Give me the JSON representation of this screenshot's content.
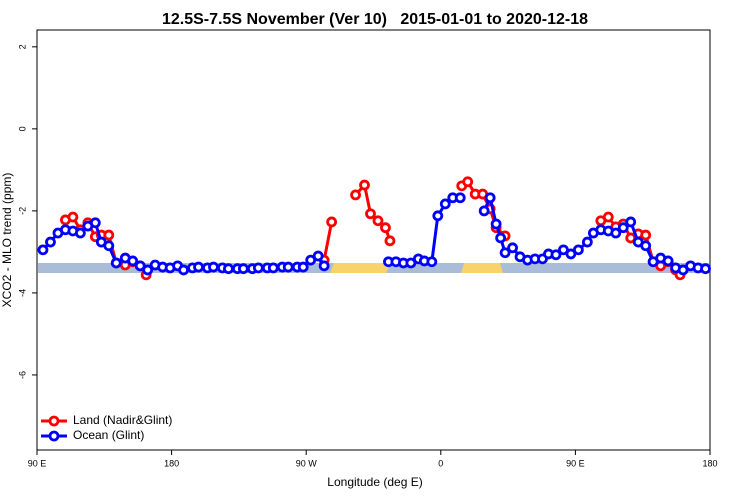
{
  "chart_data": {
    "type": "line",
    "title": "12.5S-7.5S November (Ver 10)   2015-01-01 to 2020-12-18",
    "x_label": "Longitude (deg E)",
    "y_label": "XCO2 - MLO trend (ppm)",
    "xlim": [
      90,
      540
    ],
    "ylim": [
      -7.83,
      2.41
    ],
    "xticks": [
      {
        "value": 90,
        "label": "90 E"
      },
      {
        "value": 180,
        "label": "180"
      },
      {
        "value": 270,
        "label": "90 W"
      },
      {
        "value": 360,
        "label": "0"
      },
      {
        "value": 450,
        "label": "90 E"
      },
      {
        "value": 540,
        "label": "180"
      }
    ],
    "yticks": [
      2,
      0,
      -2,
      -4,
      -6
    ],
    "legend": "bottomleft",
    "series": [
      {
        "name": "Land (Nadir&Glint)",
        "color": "#ff0000",
        "x": [
          109,
          114,
          119,
          124,
          129,
          133,
          138,
          143,
          149,
          154,
          159,
          163,
          null,
          282,
          287,
          null,
          303,
          309,
          313,
          318,
          323,
          326,
          null,
          374,
          378,
          383,
          388,
          393,
          397,
          403,
          null,
          467,
          472,
          477,
          482,
          487,
          492,
          497,
          502,
          507,
          512,
          517,
          520
        ],
        "values": [
          -2.22,
          -2.15,
          -2.46,
          -2.29,
          -2.63,
          -2.59,
          -2.59,
          -3.27,
          -3.32,
          -3.24,
          -3.34,
          -3.56,
          null,
          -3.2,
          -2.27,
          null,
          -1.61,
          -1.37,
          -2.07,
          -2.24,
          -2.41,
          -2.73,
          null,
          -1.39,
          -1.29,
          -1.59,
          -1.59,
          -1.95,
          -2.41,
          -2.61,
          null,
          -2.24,
          -2.15,
          -2.39,
          -2.32,
          -2.66,
          -2.56,
          -2.59,
          -3.24,
          -3.34,
          -3.24,
          -3.44,
          -3.56
        ]
      },
      {
        "name": "Ocean (Glint)",
        "color": "#0000ff",
        "x": [
          94,
          99,
          104,
          109,
          114,
          119,
          124,
          129,
          133,
          138,
          143,
          149,
          154,
          159,
          164,
          169,
          174,
          179,
          184,
          188,
          194,
          198,
          204,
          208,
          214,
          218,
          224,
          228,
          234,
          238,
          244,
          248,
          254,
          258,
          264,
          268,
          273,
          278,
          282,
          null,
          325,
          330,
          335,
          340,
          345,
          349,
          354,
          358,
          363,
          368,
          373,
          null,
          389,
          393,
          397,
          400,
          403,
          408,
          413,
          418,
          423,
          428,
          432,
          437,
          442,
          447,
          452,
          458,
          462,
          467,
          472,
          477,
          482,
          487,
          492,
          497,
          502,
          507,
          512,
          517,
          522,
          527,
          532,
          537
        ],
        "values": [
          -2.95,
          -2.76,
          -2.54,
          -2.46,
          -2.49,
          -2.54,
          -2.37,
          -2.29,
          -2.76,
          -2.85,
          -3.27,
          -3.15,
          -3.22,
          -3.34,
          -3.44,
          -3.32,
          -3.37,
          -3.39,
          -3.34,
          -3.44,
          -3.39,
          -3.37,
          -3.39,
          -3.37,
          -3.39,
          -3.41,
          -3.41,
          -3.41,
          -3.41,
          -3.39,
          -3.39,
          -3.39,
          -3.37,
          -3.37,
          -3.37,
          -3.37,
          -3.2,
          -3.1,
          -3.34,
          null,
          -3.24,
          -3.24,
          -3.27,
          -3.27,
          -3.17,
          -3.22,
          -3.24,
          -2.12,
          -1.83,
          -1.68,
          -1.68,
          null,
          -2.0,
          -1.68,
          -2.32,
          -2.66,
          -3.02,
          -2.9,
          -3.12,
          -3.2,
          -3.17,
          -3.17,
          -3.05,
          -3.07,
          -2.95,
          -3.05,
          -2.95,
          -2.76,
          -2.54,
          -2.46,
          -2.49,
          -2.54,
          -2.41,
          -2.27,
          -2.76,
          -2.85,
          -3.24,
          -3.15,
          -3.22,
          -3.39,
          -3.44,
          -3.34,
          -3.39,
          -3.41
        ]
      }
    ]
  }
}
